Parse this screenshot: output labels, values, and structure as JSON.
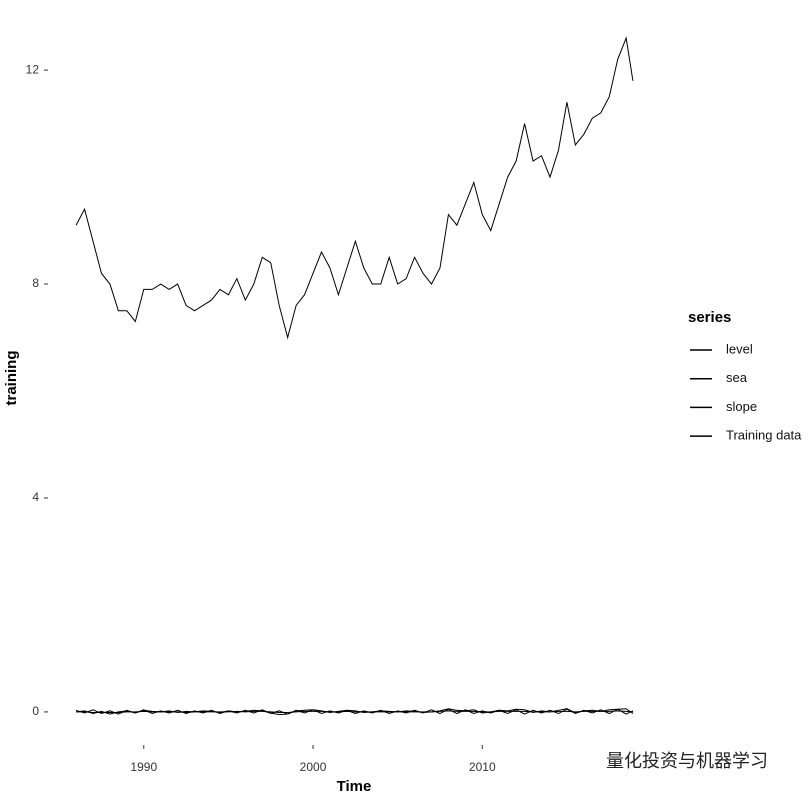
{
  "chart_data": {
    "type": "line",
    "x_label": "Time",
    "y_label": "training",
    "legend_title": "series",
    "watermark": "量化投资与机器学习",
    "x": [
      1986.0,
      1986.5,
      1987.0,
      1987.5,
      1988.0,
      1988.5,
      1989.0,
      1989.5,
      1990.0,
      1990.5,
      1991.0,
      1991.5,
      1992.0,
      1992.5,
      1993.0,
      1993.5,
      1994.0,
      1994.5,
      1995.0,
      1995.5,
      1996.0,
      1996.5,
      1997.0,
      1997.5,
      1998.0,
      1998.5,
      1999.0,
      1999.5,
      2000.0,
      2000.5,
      2001.0,
      2001.5,
      2002.0,
      2002.5,
      2003.0,
      2003.5,
      2004.0,
      2004.5,
      2005.0,
      2005.5,
      2006.0,
      2006.5,
      2007.0,
      2007.5,
      2008.0,
      2008.5,
      2009.0,
      2009.5,
      2010.0,
      2010.5,
      2011.0,
      2011.5,
      2012.0,
      2012.5,
      2013.0,
      2013.5,
      2014.0,
      2014.5,
      2015.0,
      2015.5,
      2016.0,
      2016.5,
      2017.0,
      2017.5,
      2018.0,
      2018.5,
      2018.9
    ],
    "series": [
      {
        "name": "level",
        "color": "#000000",
        "values": [
          0.0,
          0.02,
          -0.03,
          0.01,
          -0.04,
          0.0,
          0.02,
          -0.02,
          0.03,
          0.01,
          0.0,
          0.02,
          -0.01,
          0.01,
          0.0,
          0.02,
          0.01,
          -0.01,
          0.02,
          0.0,
          0.01,
          0.03,
          0.02,
          -0.02,
          -0.05,
          -0.04,
          0.02,
          0.03,
          0.04,
          0.02,
          -0.01,
          0.01,
          0.03,
          0.02,
          -0.01,
          0.0,
          0.02,
          0.01,
          0.0,
          0.02,
          0.01,
          -0.01,
          0.0,
          0.02,
          0.06,
          0.03,
          0.02,
          0.04,
          -0.02,
          0.0,
          0.03,
          0.02,
          0.05,
          0.04,
          -0.01,
          0.02,
          0.0,
          0.03,
          0.06,
          -0.02,
          0.02,
          0.03,
          0.01,
          0.04,
          0.05,
          0.06,
          -0.03
        ]
      },
      {
        "name": "sea",
        "color": "#000000",
        "values": [
          0.03,
          -0.02,
          0.04,
          -0.03,
          0.02,
          -0.04,
          0.03,
          -0.02,
          0.04,
          -0.03,
          0.02,
          -0.02,
          0.03,
          -0.03,
          0.02,
          -0.02,
          0.03,
          -0.03,
          0.02,
          -0.02,
          0.03,
          -0.02,
          0.04,
          -0.03,
          0.02,
          -0.04,
          0.03,
          -0.02,
          0.04,
          -0.03,
          0.02,
          -0.02,
          0.03,
          -0.03,
          0.02,
          -0.02,
          0.03,
          -0.03,
          0.02,
          -0.02,
          0.03,
          -0.02,
          0.04,
          -0.03,
          0.05,
          -0.03,
          0.04,
          -0.03,
          0.02,
          -0.02,
          0.03,
          -0.03,
          0.04,
          -0.04,
          0.03,
          -0.02,
          0.03,
          -0.03,
          0.05,
          -0.03,
          0.03,
          -0.02,
          0.04,
          -0.03,
          0.05,
          -0.04,
          0.02
        ]
      },
      {
        "name": "slope",
        "color": "#000000",
        "values": [
          0.0,
          0.0,
          -0.01,
          -0.01,
          -0.01,
          -0.01,
          0.0,
          0.0,
          0.01,
          0.0,
          0.0,
          0.0,
          0.0,
          -0.01,
          0.0,
          0.0,
          0.0,
          0.0,
          0.0,
          0.01,
          0.0,
          0.01,
          0.01,
          0.0,
          -0.01,
          -0.01,
          0.0,
          0.01,
          0.01,
          0.01,
          0.0,
          0.0,
          0.01,
          0.0,
          0.0,
          0.0,
          0.0,
          0.0,
          0.0,
          0.0,
          0.0,
          0.0,
          0.0,
          0.01,
          0.02,
          0.01,
          0.01,
          0.01,
          0.0,
          0.0,
          0.01,
          0.01,
          0.01,
          0.01,
          0.0,
          0.0,
          0.0,
          0.01,
          0.01,
          0.0,
          0.01,
          0.01,
          0.01,
          0.01,
          0.02,
          0.01,
          0.0
        ]
      },
      {
        "name": "Training data",
        "color": "#000000",
        "values": [
          9.1,
          9.4,
          8.8,
          8.2,
          8.0,
          7.5,
          7.5,
          7.3,
          7.9,
          7.9,
          8.0,
          7.9,
          8.0,
          7.6,
          7.5,
          7.6,
          7.7,
          7.9,
          7.8,
          8.1,
          7.7,
          8.0,
          8.5,
          8.4,
          7.6,
          7.0,
          7.6,
          7.8,
          8.2,
          8.6,
          8.3,
          7.8,
          8.3,
          8.8,
          8.3,
          8.0,
          8.0,
          8.5,
          8.0,
          8.1,
          8.5,
          8.2,
          8.0,
          8.3,
          9.3,
          9.1,
          9.5,
          9.9,
          9.3,
          9.0,
          9.5,
          10.0,
          10.3,
          11.0,
          10.3,
          10.4,
          10.0,
          10.5,
          11.4,
          10.6,
          10.8,
          11.1,
          11.2,
          11.5,
          12.2,
          12.6,
          11.8
        ]
      }
    ],
    "xlim": [
      1984.4,
      2020.5
    ],
    "xticks": [
      1990,
      2000,
      2010
    ],
    "ylim": [
      -0.6,
      12.75
    ],
    "yticks": [
      0,
      4,
      8,
      12
    ],
    "grid": false
  }
}
